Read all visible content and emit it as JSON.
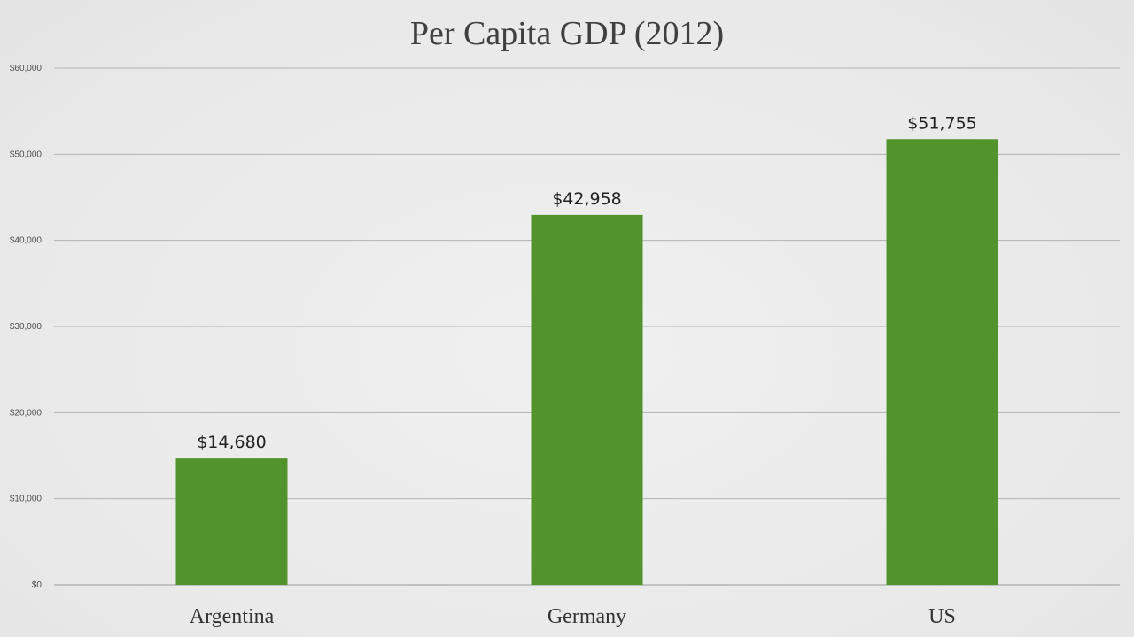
{
  "chart_data": {
    "type": "bar",
    "title": "Per Capita GDP (2012)",
    "xlabel": "",
    "ylabel": "",
    "categories": [
      "Argentina",
      "Germany",
      "US"
    ],
    "values": [
      14680,
      42958,
      51755
    ],
    "value_labels": [
      "$14,680",
      "$42,958",
      "$51,755"
    ],
    "ylim": [
      0,
      60000
    ],
    "yticks": [
      0,
      10000,
      20000,
      30000,
      40000,
      50000,
      60000
    ],
    "ytick_labels": [
      "$0",
      "$10,000",
      "$20,000",
      "$30,000",
      "$40,000",
      "$50,000",
      "$60,000"
    ],
    "grid": true,
    "legend": "none",
    "colors": {
      "bar": "#53932c",
      "background": "#ececec"
    }
  }
}
